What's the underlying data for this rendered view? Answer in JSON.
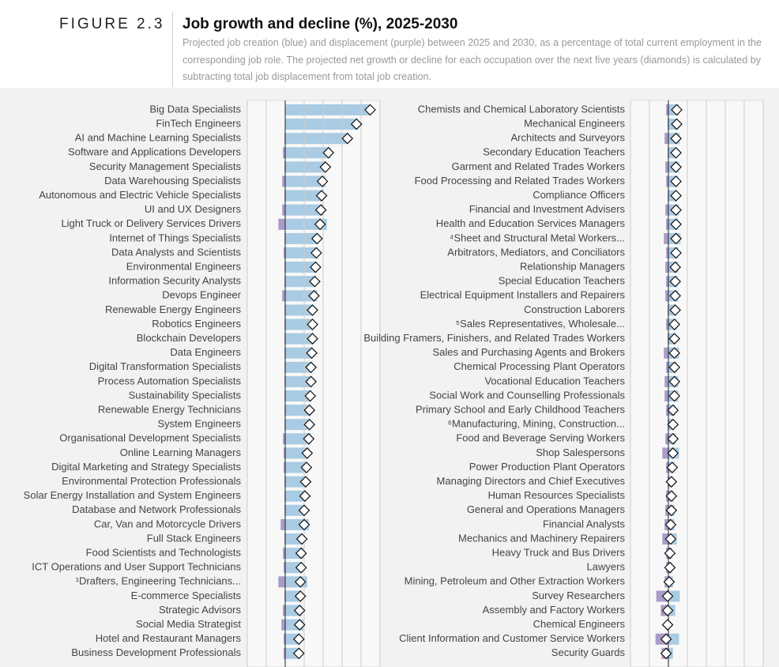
{
  "header": {
    "figure": "FIGURE 2.3",
    "title": "Job growth and decline (%), 2025-2030",
    "subtitle": "Projected job creation (blue) and displacement (purple) between 2025 and 2030, as a percentage of total current employment in the corresponding job role. The projected net growth or decline for each occupation over the next five years (diamonds) is calculated by subtracting total job displacement from total job creation."
  },
  "chart_data": [
    {
      "type": "bar",
      "xlim": [
        -50,
        125
      ],
      "xticks": [
        -50,
        -25,
        0,
        25,
        50,
        75,
        100,
        125
      ],
      "grid": true,
      "categories": [
        "Big Data Specialists",
        "FinTech Engineers",
        "AI and Machine Learning Specialists",
        "Software and Applications Developers",
        "Security Management Specialists",
        "Data Warehousing Specialists",
        "Autonomous and Electric Vehicle Specialists",
        "UI and UX Designers",
        "Light Truck or Delivery Services Drivers",
        "Internet of Things Specialists",
        "Data Analysts and Scientists",
        "Environmental Engineers",
        "Information Security Analysts",
        "Devops Engineer",
        "Renewable Energy Engineers",
        "Robotics Engineers",
        "Blockchain Developers",
        "Data Engineers",
        "Digital Transformation Specialists",
        "Process Automation Specialists",
        "Sustainability Specialists",
        "Renewable Energy Technicians",
        "System Engineers",
        "Organisational Development Specialists",
        "Online Learning Managers",
        "Digital Marketing and Strategy Specialists",
        "Environmental Protection Professionals",
        "Solar Energy Installation and System Engineers",
        "Database and Network Professionals",
        "Car, Van and Motorcycle Drivers",
        "Full Stack Engineers",
        "Food Scientists and Technologists",
        "ICT Operations and User Support Technicians",
        "¹Drafters, Engineering Technicians...",
        "E-commerce Specialists",
        "Strategic Advisors",
        "Social Media Strategist",
        "Hotel and Restaurant Managers",
        "Business Development Professionals"
      ],
      "series": [
        {
          "color": "#a9cbe3",
          "values": [
            112,
            94,
            83,
            60,
            54,
            53,
            49,
            51,
            55,
            43,
            43,
            41,
            40,
            42,
            37,
            37,
            37,
            36,
            35,
            35,
            34,
            33,
            33,
            34,
            31,
            30,
            28,
            27,
            26,
            31,
            23,
            24,
            23,
            29,
            21,
            22,
            24,
            20,
            20
          ]
        },
        {
          "color": "#a99cc9",
          "values": [
            0,
            0,
            -1,
            -3,
            -1,
            -4,
            -1,
            -4,
            -9,
            -1,
            -2,
            -1,
            -1,
            -4,
            -1,
            -1,
            -1,
            -1,
            -1,
            -1,
            -1,
            -1,
            -1,
            -3,
            -2,
            -2,
            -1,
            -1,
            -1,
            -6,
            -1,
            -3,
            -2,
            -9,
            -1,
            -3,
            -5,
            -2,
            -2
          ]
        },
        {
          "color": "#ffffff",
          "values": [
            112,
            94,
            82,
            57,
            53,
            49,
            48,
            47,
            46,
            42,
            41,
            40,
            39,
            38,
            36,
            36,
            36,
            35,
            34,
            34,
            33,
            32,
            32,
            31,
            29,
            28,
            27,
            26,
            25,
            25,
            22,
            21,
            21,
            20,
            20,
            19,
            19,
            18,
            18
          ]
        }
      ]
    },
    {
      "type": "bar",
      "xlim": [
        -50,
        125
      ],
      "xticks": [
        -50,
        -25,
        0,
        25,
        50,
        75,
        100,
        125
      ],
      "grid": true,
      "categories": [
        "Chemists and Chemical Laboratory Scientists",
        "Mechanical Engineers",
        "Architects and Surveyors",
        "Secondary Education Teachers",
        "Garment and Related Trades Workers",
        "Food Processing and Related Trades Workers",
        "Compliance Officers",
        "Financial and Investment Advisers",
        "Health and Education Services Managers",
        "⁴Sheet and Structural Metal Workers...",
        "Arbitrators, Mediators, and Conciliators",
        "Relationship Managers",
        "Special Education Teachers",
        "Electrical Equipment Installers and Repairers",
        "Construction Laborers",
        "⁵Sales Representatives, Wholesale...",
        "Building Framers, Finishers, and Related Trades Workers",
        "Sales and Purchasing Agents and Brokers",
        "Chemical Processing Plant Operators",
        "Vocational Education Teachers",
        "Social Work and Counselling Professionals",
        "Primary School and Early Childhood Teachers",
        "⁶Manufacturing, Mining, Construction...",
        "Food and Beverage Serving Workers",
        "Shop Salespersons",
        "Power Production Plant Operators",
        "Managing Directors and Chief Executives",
        "Human Resources Specialists",
        "General and Operations Managers",
        "Financial Analysts",
        "Mechanics and Machinery Repairers",
        "Heavy Truck and Bus Drivers",
        "Lawyers",
        "Mining, Petroleum and Other Extraction Workers",
        "Survey Researchers",
        "Assembly and Factory Workers",
        "Chemical Engineers",
        "Client Information and Customer Service Workers",
        "Security Guards"
      ],
      "series": [
        {
          "color": "#a9cbe3",
          "values": [
            14,
            12,
            15,
            11,
            14,
            13,
            11,
            14,
            13,
            16,
            13,
            13,
            12,
            13,
            10,
            11,
            9,
            14,
            11,
            13,
            13,
            9,
            7,
            10,
            14,
            8,
            5,
            7,
            8,
            8,
            11,
            5,
            5,
            6,
            15,
            9,
            1,
            14,
            6
          ]
        },
        {
          "color": "#a99cc9",
          "values": [
            -3,
            -1,
            -5,
            -1,
            -4,
            -3,
            -1,
            -4,
            -3,
            -6,
            -3,
            -4,
            -3,
            -4,
            -1,
            -3,
            -1,
            -6,
            -3,
            -5,
            -5,
            -3,
            -1,
            -4,
            -8,
            -3,
            -1,
            -3,
            -4,
            -5,
            -8,
            -3,
            -3,
            -5,
            -16,
            -10,
            -2,
            -17,
            -9
          ]
        },
        {
          "color": "#ffffff",
          "values": [
            11,
            11,
            10,
            10,
            10,
            10,
            10,
            10,
            10,
            10,
            10,
            9,
            9,
            9,
            9,
            8,
            8,
            8,
            8,
            8,
            8,
            6,
            6,
            6,
            6,
            5,
            4,
            4,
            4,
            3,
            3,
            2,
            2,
            1,
            -1,
            -1,
            -1,
            -3,
            -3
          ]
        }
      ]
    }
  ]
}
